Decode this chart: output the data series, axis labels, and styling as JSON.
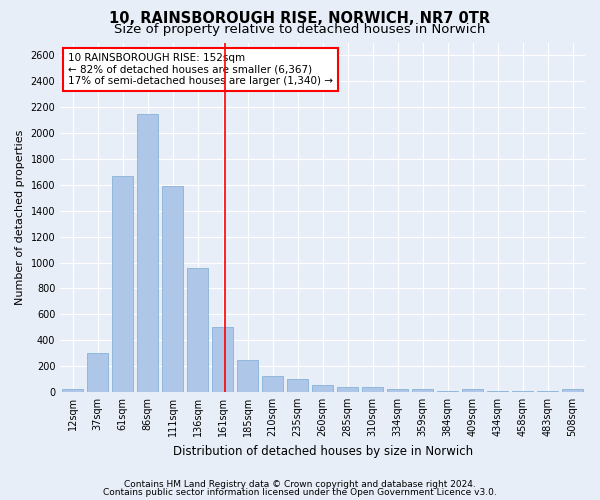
{
  "title": "10, RAINSBOROUGH RISE, NORWICH, NR7 0TR",
  "subtitle": "Size of property relative to detached houses in Norwich",
  "xlabel": "Distribution of detached houses by size in Norwich",
  "ylabel": "Number of detached properties",
  "bar_labels": [
    "12sqm",
    "37sqm",
    "61sqm",
    "86sqm",
    "111sqm",
    "136sqm",
    "161sqm",
    "185sqm",
    "210sqm",
    "235sqm",
    "260sqm",
    "285sqm",
    "310sqm",
    "334sqm",
    "359sqm",
    "384sqm",
    "409sqm",
    "434sqm",
    "458sqm",
    "483sqm",
    "508sqm"
  ],
  "bar_values": [
    25,
    300,
    1670,
    2150,
    1590,
    960,
    500,
    250,
    120,
    100,
    50,
    35,
    40,
    20,
    25,
    10,
    20,
    5,
    5,
    5,
    25
  ],
  "bar_color": "#aec6e8",
  "bar_edgecolor": "#7aacd4",
  "ylim": [
    0,
    2700
  ],
  "yticks": [
    0,
    200,
    400,
    600,
    800,
    1000,
    1200,
    1400,
    1600,
    1800,
    2000,
    2200,
    2400,
    2600
  ],
  "vline_x_index": 6.08,
  "annotation_text": "10 RAINSBOROUGH RISE: 152sqm\n← 82% of detached houses are smaller (6,367)\n17% of semi-detached houses are larger (1,340) →",
  "annotation_box_color": "white",
  "annotation_box_edgecolor": "red",
  "vline_color": "red",
  "footer1": "Contains HM Land Registry data © Crown copyright and database right 2024.",
  "footer2": "Contains public sector information licensed under the Open Government Licence v3.0.",
  "background_color": "#e8eef8",
  "plot_bg_color": "#e8eef8",
  "grid_color": "white",
  "title_fontsize": 10.5,
  "subtitle_fontsize": 9.5,
  "ylabel_fontsize": 8,
  "xlabel_fontsize": 8.5,
  "tick_fontsize": 7,
  "annotation_fontsize": 7.5,
  "footer_fontsize": 6.5
}
